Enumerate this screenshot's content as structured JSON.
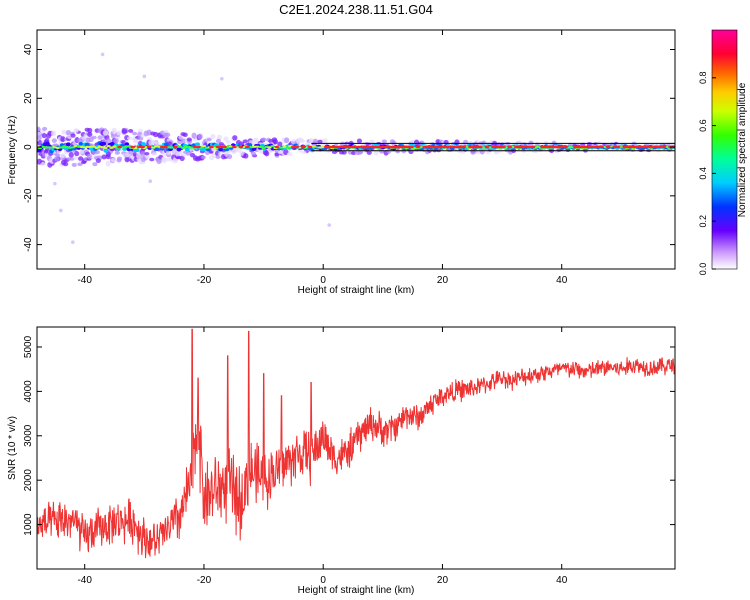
{
  "title": "C2E1.2024.238.11.51.G04",
  "chart_data": [
    {
      "type": "heatmap",
      "xlabel": "Height of straight line (km)",
      "ylabel": "Frequency (Hz)",
      "xlim": [
        -48,
        59
      ],
      "ylim": [
        -50,
        48
      ],
      "xticks": [
        -40,
        -20,
        0,
        20,
        40
      ],
      "yticks": [
        -40,
        -20,
        0,
        20,
        40
      ],
      "colorbar": {
        "label": "Normalized spectral amplitude",
        "range": [
          0,
          1
        ],
        "ticks": [
          "0.0",
          "0.2",
          "0.4",
          "0.6",
          "0.8"
        ]
      },
      "ridge": {
        "description_values": "Energy concentrated near 0 Hz; spread wider at negative heights",
        "center_hz": 0,
        "spread_hz": [
          [
            -48,
            6
          ],
          [
            -30,
            5
          ],
          [
            -15,
            3
          ],
          [
            0,
            2
          ],
          [
            15,
            2
          ],
          [
            40,
            1.2
          ],
          [
            59,
            1.2
          ]
        ]
      },
      "outliers": [
        [
          -37,
          38
        ],
        [
          -30,
          29
        ],
        [
          -44,
          -26
        ],
        [
          -42,
          -39
        ],
        [
          -29,
          -14
        ],
        [
          -17,
          28
        ],
        [
          -45,
          -15
        ],
        [
          1,
          -32
        ]
      ]
    },
    {
      "type": "line",
      "xlabel": "Height of straight line (km)",
      "ylabel": "SNR (10 * v/v)",
      "xlim": [
        -48,
        59
      ],
      "ylim": [
        0,
        5450
      ],
      "xticks": [
        -40,
        -20,
        0,
        20,
        40
      ],
      "yticks": [
        1000,
        2000,
        3000,
        4000,
        5000
      ],
      "series": [
        {
          "color": "#ee3333",
          "x": [
            -48,
            -45,
            -42,
            -40,
            -38,
            -35,
            -32,
            -30,
            -28,
            -26,
            -24,
            -22,
            -21,
            -20,
            -18,
            -16,
            -14,
            -12,
            -10,
            -8,
            -6,
            -4,
            -2,
            0,
            2,
            4,
            6,
            8,
            10,
            12,
            14,
            16,
            18,
            20,
            22,
            24,
            26,
            28,
            30,
            32,
            34,
            36,
            38,
            40,
            42,
            44,
            46,
            48,
            50,
            52,
            54,
            56,
            59
          ],
          "values": [
            950,
            1050,
            1100,
            700,
            900,
            1050,
            1100,
            700,
            600,
            900,
            1200,
            2000,
            3400,
            1600,
            1800,
            1900,
            1500,
            2200,
            2000,
            2200,
            2400,
            2600,
            2500,
            3000,
            2500,
            2600,
            3000,
            3300,
            3100,
            3200,
            3500,
            3400,
            3700,
            3900,
            4000,
            4050,
            4100,
            4200,
            4300,
            4250,
            4350,
            4400,
            4450,
            4500,
            4500,
            4450,
            4500,
            4550,
            4500,
            4600,
            4550,
            4550,
            4600
          ],
          "noise_amplitude": [
            500,
            550,
            600,
            550,
            550,
            550,
            600,
            600,
            500,
            600,
            700,
            900,
            1200,
            1000,
            1000,
            1000,
            1000,
            900,
            800,
            700,
            700,
            700,
            700,
            600,
            500,
            500,
            500,
            450,
            450,
            400,
            400,
            350,
            350,
            300,
            300,
            300,
            250,
            250,
            250,
            250,
            250,
            250,
            250,
            250,
            250,
            250,
            250,
            250,
            250,
            250,
            250,
            250,
            250
          ],
          "peaks": [
            [
              -22,
              5400
            ],
            [
              -12.5,
              5350
            ],
            [
              -21,
              4300
            ],
            [
              -16,
              4800
            ],
            [
              -10,
              4400
            ],
            [
              -2,
              4200
            ],
            [
              -7,
              3900
            ]
          ]
        }
      ]
    }
  ]
}
